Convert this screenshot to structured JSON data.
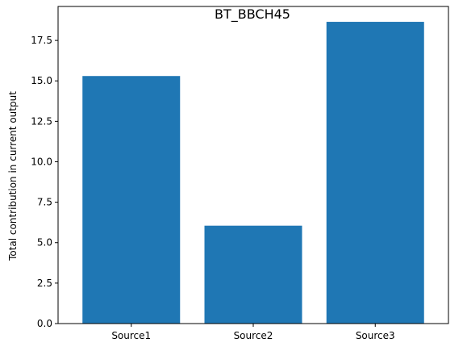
{
  "chart_data": {
    "type": "bar",
    "title": "BT_BBCH45",
    "xlabel": "",
    "ylabel": "Total contribution in current output",
    "categories": [
      "Source1",
      "Source2",
      "Source3"
    ],
    "values": [
      15.3,
      6.05,
      18.65
    ],
    "ylim": [
      0,
      19.6
    ],
    "yticks": [
      0.0,
      2.5,
      5.0,
      7.5,
      10.0,
      12.5,
      15.0,
      17.5
    ],
    "ytick_labels": [
      "0.0",
      "2.5",
      "5.0",
      "7.5",
      "10.0",
      "12.5",
      "15.0",
      "17.5"
    ],
    "bar_color": "#1f77b4",
    "grid": false,
    "legend": null
  }
}
